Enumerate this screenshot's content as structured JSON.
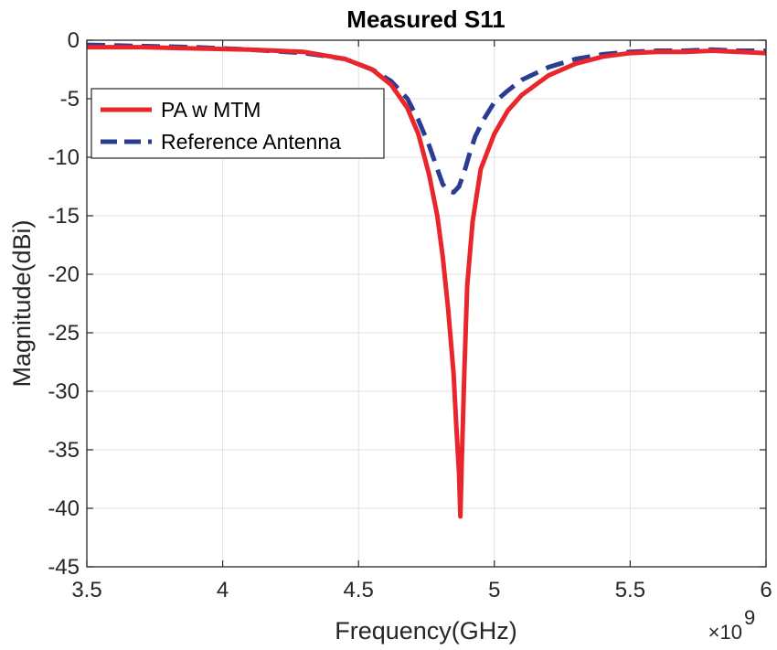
{
  "chart_data": {
    "type": "line",
    "title": "Measured S11",
    "xlabel": "Frequency(GHz)",
    "ylabel": "Magnitude(dBi)",
    "x_exponent_base": "×10",
    "x_exponent_power": "9",
    "xlim": [
      3.5,
      6.0
    ],
    "ylim": [
      -45,
      0
    ],
    "xticks": [
      3.5,
      4.0,
      4.5,
      5.0,
      5.5,
      6.0
    ],
    "xtick_labels": [
      "3.5",
      "4",
      "4.5",
      "5",
      "5.5",
      "6"
    ],
    "yticks": [
      0,
      -5,
      -10,
      -15,
      -20,
      -25,
      -30,
      -35,
      -40,
      -45
    ],
    "ytick_labels": [
      "0",
      "-5",
      "-10",
      "-15",
      "-20",
      "-25",
      "-30",
      "-35",
      "-40",
      "-45"
    ],
    "grid": true,
    "legend_position": "top-left",
    "series": [
      {
        "name": "PA w MTM",
        "color": "#e8262b",
        "style": "solid",
        "x": [
          3.5,
          3.7,
          3.9,
          4.1,
          4.3,
          4.45,
          4.55,
          4.62,
          4.68,
          4.72,
          4.76,
          4.79,
          4.81,
          4.83,
          4.85,
          4.86,
          4.87,
          4.875,
          4.88,
          4.89,
          4.9,
          4.92,
          4.95,
          5.0,
          5.05,
          5.1,
          5.2,
          5.3,
          5.4,
          5.5,
          5.6,
          5.7,
          5.8,
          5.9,
          6.0
        ],
        "y": [
          -0.6,
          -0.6,
          -0.7,
          -0.8,
          -1.0,
          -1.6,
          -2.5,
          -3.8,
          -5.8,
          -8.0,
          -11.5,
          -15.0,
          -18.5,
          -23.0,
          -28.5,
          -33.0,
          -37.0,
          -40.7,
          -36.0,
          -28.0,
          -21.0,
          -15.5,
          -11.0,
          -8.0,
          -6.0,
          -4.7,
          -3.0,
          -2.0,
          -1.4,
          -1.1,
          -1.0,
          -1.0,
          -0.9,
          -1.0,
          -1.1
        ]
      },
      {
        "name": "Reference Antenna",
        "color": "#2b3d93",
        "style": "dashed",
        "x": [
          3.5,
          3.7,
          3.9,
          4.1,
          4.3,
          4.45,
          4.55,
          4.62,
          4.68,
          4.72,
          4.76,
          4.79,
          4.81,
          4.83,
          4.85,
          4.87,
          4.89,
          4.91,
          4.93,
          4.96,
          5.0,
          5.05,
          5.1,
          5.2,
          5.3,
          5.4,
          5.5,
          5.6,
          5.7,
          5.8,
          5.9,
          6.0
        ],
        "y": [
          -0.4,
          -0.5,
          -0.6,
          -0.8,
          -1.1,
          -1.6,
          -2.5,
          -3.5,
          -5.0,
          -6.8,
          -9.0,
          -11.0,
          -12.3,
          -12.9,
          -13.0,
          -12.5,
          -11.2,
          -9.6,
          -8.2,
          -6.8,
          -5.3,
          -4.3,
          -3.4,
          -2.3,
          -1.6,
          -1.2,
          -1.0,
          -0.9,
          -0.9,
          -0.8,
          -0.9,
          -0.9
        ]
      }
    ]
  }
}
